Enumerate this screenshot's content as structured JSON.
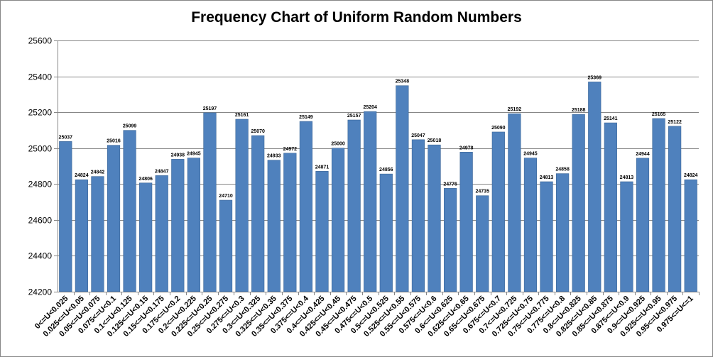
{
  "chart_data": {
    "type": "bar",
    "title": "Frequency Chart of Uniform Random Numbers",
    "xlabel": "",
    "ylabel": "",
    "ylim": [
      24200,
      25600
    ],
    "yticks": [
      24200,
      24400,
      24600,
      24800,
      25000,
      25200,
      25400,
      25600
    ],
    "grid": true,
    "legend": "none",
    "bar_color": "#4f81bd",
    "categories": [
      "0<=U<0.025",
      "0.025<=U<0.05",
      "0.05<=U<0.075",
      "0.075<=U<0.1",
      "0.1<=U<0.125",
      "0.125<=U<0.15",
      "0.15<=U<0.175",
      "0.175<=U<0.2",
      "0.2<=U<0.225",
      "0.225<=U<0.25",
      "0.25<=U<0.275",
      "0.275<=U<0.3",
      "0.3<=U<0.325",
      "0.325<=U<0.35",
      "0.35<=U<0.375",
      "0.375<=U<0.4",
      "0.4<=U<0.425",
      "0.425<=U<0.45",
      "0.45<=U<0.475",
      "0.475<=U<0.5",
      "0.5<=U<0.525",
      "0.525<=U<0.55",
      "0.55<=U<0.575",
      "0.575<=U<0.6",
      "0.6<=U<0.625",
      "0.625<=U<0.65",
      "0.65<=U<0.675",
      "0.675<=U<0.7",
      "0.7<=U<0.725",
      "0.725<=U<0.75",
      "0.75<=U<0.775",
      "0.775<=U<0.8",
      "0.8<=U<0.825",
      "0.825<=U<0.85",
      "0.85<=U<0.875",
      "0.875<=U<0.9",
      "0.9<=U<0.925",
      "0.925<=U<0.95",
      "0.95<=U<0.975",
      "0.975<=U<=1"
    ],
    "values": [
      25037,
      24824,
      24842,
      25016,
      25099,
      24806,
      24847,
      24938,
      24945,
      25197,
      24710,
      25161,
      25070,
      24933,
      24972,
      25149,
      24871,
      25000,
      25157,
      25204,
      24856,
      25348,
      25047,
      25018,
      24776,
      24978,
      24735,
      25090,
      25192,
      24945,
      24813,
      24858,
      25188,
      25369,
      25141,
      24813,
      24944,
      25165,
      25122,
      24824
    ]
  }
}
